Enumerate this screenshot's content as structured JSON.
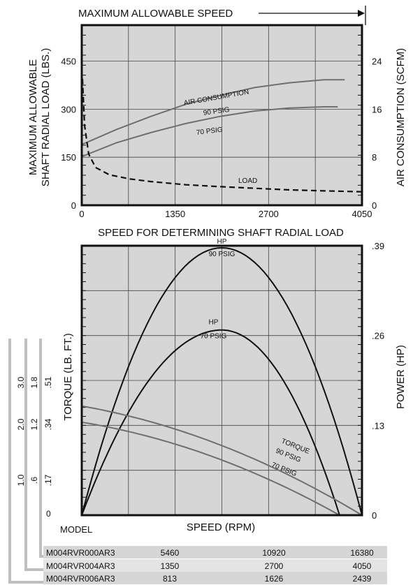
{
  "chart_data": [
    {
      "type": "line",
      "title": "MAXIMUM ALLOWABLE SPEED",
      "xlabel": "SPEED FOR DETERMINING SHAFT RADIAL LOAD",
      "ylabel": "MAXIMUM ALLOWABLE SHAFT RADIAL LOAD (LBS.)",
      "ylabel_lines": [
        "MAXIMUM ALLOWABLE",
        "SHAFT RADIAL LOAD (LBS.)"
      ],
      "y2label": "AIR CONSUMPTION (SCFM)",
      "xlim": [
        0,
        4050
      ],
      "ylim": [
        0,
        562.5
      ],
      "y2lim": [
        0,
        30
      ],
      "x_ticks": [
        0,
        1350,
        2700,
        4050
      ],
      "y_ticks": [
        0,
        150,
        300,
        450
      ],
      "y2_ticks": [
        0,
        8,
        16,
        24
      ],
      "grid": true,
      "series": [
        {
          "name": "AIR CONSUMPTION 90 PSIG",
          "label_lines": [
            "AIR CONSUMPTION",
            "90 PSIG"
          ],
          "axis": "right",
          "style": "solid",
          "x": [
            0,
            500,
            1000,
            1500,
            2000,
            2500,
            3000,
            3500,
            3800
          ],
          "y": [
            10.1,
            12.6,
            14.8,
            16.8,
            18.3,
            19.6,
            20.4,
            20.9,
            20.9
          ]
        },
        {
          "name": "70 PSIG",
          "label_lines": [
            "70 PSIG"
          ],
          "axis": "right",
          "style": "solid",
          "x": [
            0,
            500,
            1000,
            1500,
            2000,
            2500,
            3000,
            3500,
            3700
          ],
          "y": [
            8.1,
            10.4,
            12.1,
            13.6,
            14.8,
            15.7,
            16.2,
            16.4,
            16.4
          ]
        },
        {
          "name": "LOAD",
          "label_lines": [
            "LOAD"
          ],
          "axis": "left",
          "style": "dashed",
          "x": [
            10,
            40,
            100,
            200,
            400,
            700,
            1000,
            1500,
            2000,
            2500,
            3000,
            3500,
            4050
          ],
          "y": [
            395,
            250,
            160,
            118,
            95,
            82,
            74,
            64,
            58,
            53,
            48,
            45,
            42
          ]
        }
      ]
    },
    {
      "type": "line",
      "xlabel": "SPEED (RPM)",
      "ylabel": "TORQUE (LB. FT.)",
      "y2label": "POWER (HP)",
      "ylim": [
        0,
        1
      ],
      "y2lim": [
        0,
        0.39
      ],
      "y2_ticks": [
        "0",
        ".13",
        ".26",
        ".39"
      ],
      "grid": true,
      "torque_ticks_by_model": [
        {
          "ticks": [
            "1.0",
            "2.0",
            "3.0"
          ],
          "bracket": "M004RVR000AR3"
        },
        {
          "ticks": [
            ".6",
            "1.2",
            "1.8"
          ],
          "bracket": "M004RVR004AR3"
        },
        {
          "ticks": [
            ".17",
            ".34",
            ".51"
          ],
          "bracket": "M004RVR006AR3"
        }
      ],
      "torque_zero": "0",
      "model_label": "MODEL",
      "speed_table": {
        "rows": [
          {
            "model": "M004RVR000AR3",
            "speeds": [
              "5460",
              "10920",
              "16380"
            ]
          },
          {
            "model": "M004RVR004AR3",
            "speeds": [
              "1350",
              "2700",
              "4050"
            ]
          },
          {
            "model": "M004RVR006AR3",
            "speeds": [
              "813",
              "1626",
              "2439"
            ]
          }
        ]
      },
      "series": [
        {
          "name": "HP 90 PSIG",
          "label_lines": [
            "HP",
            "90 PSIG"
          ],
          "kind": "power",
          "peak_x": 0.5,
          "peak": 0.387,
          "x_max": 1.0
        },
        {
          "name": "HP 70 PSIG",
          "label_lines": [
            "HP",
            "70 PSIG"
          ],
          "kind": "power",
          "peak_x": 0.5,
          "peak": 0.268,
          "x_max": 0.92
        },
        {
          "name": "TORQUE 90 PSIG",
          "label_lines": [
            "TORQUE",
            "90 PSIG"
          ],
          "kind": "torque",
          "y0": 0.405,
          "x_max": 1.0
        },
        {
          "name": "70 PSIG",
          "label_lines": [
            "70 PSIG"
          ],
          "kind": "torque",
          "y0": 0.345,
          "x_max": 0.92
        }
      ]
    }
  ],
  "colors": {
    "panel": "#d6d6d6",
    "grey_line": "#6f6f6f",
    "black_line": "#111111",
    "table_row": "#d6d6d6"
  }
}
